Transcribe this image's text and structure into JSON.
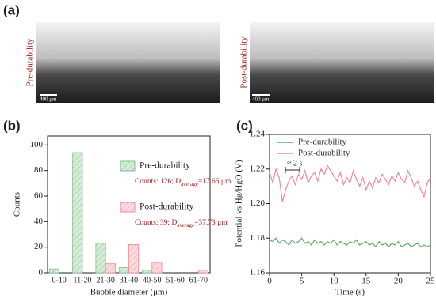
{
  "figure": {
    "panel_labels": [
      "(a)",
      "(b)",
      "(c)"
    ],
    "images": [
      {
        "label": "Pre-durability",
        "scale_bar": "400 μm"
      },
      {
        "label": "Post-durability",
        "scale_bar": "400 μm"
      }
    ]
  },
  "chart_data": [
    {
      "type": "bar",
      "x_label": "Bubble diameter (μm)",
      "y_label": "Counts",
      "categories": [
        "0-10",
        "11-20",
        "21-30",
        "31-40",
        "40-50",
        "51-60",
        "61-70"
      ],
      "series": [
        {
          "name": "Pre-durability",
          "color": "#7fc08a",
          "values": [
            3,
            94,
            23,
            4,
            2,
            0,
            0
          ]
        },
        {
          "name": "Post-durability",
          "color": "#f08a9a",
          "values": [
            0,
            0,
            7,
            22,
            8,
            0,
            2
          ]
        }
      ],
      "annotations": [
        {
          "prefix": "Counts: 126; D",
          "sub": "average",
          "suffix": "=17.65 μm"
        },
        {
          "prefix": "Counts: 39; D",
          "sub": "average",
          "suffix": "=37.73 μm"
        }
      ],
      "ylim": [
        0,
        107
      ],
      "yticks": [
        0,
        20,
        40,
        60,
        80,
        100
      ]
    },
    {
      "type": "line",
      "x_label": "Time (s)",
      "y_label": "Potential vs Hg/HgO (V)",
      "annotation": "≈ 2 s",
      "legend": "upper-left",
      "x": [
        0,
        0.5,
        1,
        1.5,
        2,
        2.5,
        3,
        3.5,
        4,
        4.5,
        5,
        5.5,
        6,
        6.5,
        7,
        7.5,
        8,
        8.5,
        9,
        9.5,
        10,
        10.5,
        11,
        11.5,
        12,
        12.5,
        13,
        13.5,
        14,
        14.5,
        15,
        15.5,
        16,
        16.5,
        17,
        17.5,
        18,
        18.5,
        19,
        19.5,
        20,
        20.5,
        21,
        21.5,
        22,
        22.5,
        23,
        23.5,
        24,
        24.5,
        25
      ],
      "series": [
        {
          "name": "Pre-durability",
          "color": "#5fae6a",
          "values": [
            1.179,
            1.178,
            1.18,
            1.177,
            1.179,
            1.178,
            1.176,
            1.179,
            1.177,
            1.178,
            1.18,
            1.177,
            1.178,
            1.176,
            1.179,
            1.177,
            1.178,
            1.176,
            1.178,
            1.177,
            1.179,
            1.176,
            1.178,
            1.177,
            1.176,
            1.178,
            1.177,
            1.179,
            1.176,
            1.177,
            1.178,
            1.176,
            1.177,
            1.175,
            1.178,
            1.176,
            1.177,
            1.175,
            1.177,
            1.176,
            1.178,
            1.175,
            1.176,
            1.177,
            1.175,
            1.176,
            1.177,
            1.175,
            1.176,
            1.175,
            1.176
          ]
        },
        {
          "name": "Post-durability",
          "color": "#f08a9a",
          "values": [
            1.218,
            1.212,
            1.22,
            1.215,
            1.201,
            1.208,
            1.213,
            1.216,
            1.211,
            1.217,
            1.214,
            1.219,
            1.212,
            1.216,
            1.218,
            1.213,
            1.22,
            1.217,
            1.222,
            1.219,
            1.216,
            1.213,
            1.218,
            1.211,
            1.215,
            1.212,
            1.219,
            1.214,
            1.21,
            1.215,
            1.208,
            1.213,
            1.209,
            1.215,
            1.212,
            1.217,
            1.214,
            1.211,
            1.216,
            1.213,
            1.218,
            1.214,
            1.212,
            1.219,
            1.215,
            1.21,
            1.213,
            1.208,
            1.204,
            1.212,
            1.215
          ]
        }
      ],
      "xlim": [
        0,
        25
      ],
      "xticks": [
        0,
        5,
        10,
        15,
        20,
        25
      ],
      "ylim": [
        1.16,
        1.24
      ],
      "yticks": [
        1.16,
        1.18,
        {
          "value": 1.2,
          "label": "1.20"
        },
        1.22,
        1.24
      ]
    }
  ]
}
